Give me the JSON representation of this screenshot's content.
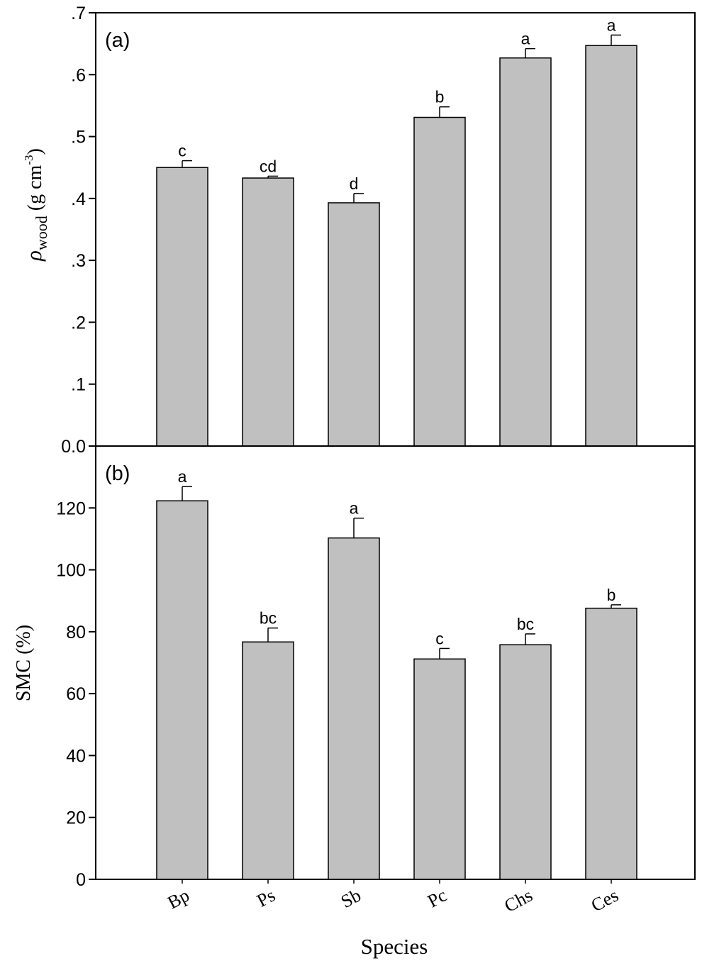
{
  "chart_data": [
    {
      "type": "bar",
      "panel": "(a)",
      "categories": [
        "Bp",
        "Ps",
        "Sb",
        "Pc",
        "Chs",
        "Ces"
      ],
      "series": [
        {
          "values": [
            0.45,
            0.433,
            0.393,
            0.531,
            0.627,
            0.647
          ],
          "errors": [
            0.011,
            0.003,
            0.015,
            0.017,
            0.015,
            0.017
          ],
          "labels": [
            "c",
            "cd",
            "d",
            "b",
            "a",
            "a"
          ]
        }
      ],
      "ylabel_symbol": "ρ",
      "ylabel_subscript": "wood",
      "ylabel_unit": " (g cm",
      "ylabel_exponent": "-3",
      "ylabel_close": ")",
      "ylim": [
        0,
        0.7
      ],
      "yticks": [
        0,
        0.1,
        0.2,
        0.3,
        0.4,
        0.5,
        0.6,
        0.7
      ],
      "ytick_labels": [
        "0.0",
        ".1",
        ".2",
        ".3",
        ".4",
        ".5",
        ".6",
        ".7"
      ],
      "bar_color": "#c0c0c0",
      "grid": false
    },
    {
      "type": "bar",
      "panel": "(b)",
      "categories": [
        "Bp",
        "Ps",
        "Sb",
        "Pc",
        "Chs",
        "Ces"
      ],
      "series": [
        {
          "values": [
            122.3,
            76.7,
            110.3,
            71.2,
            75.8,
            87.6
          ],
          "errors": [
            4.6,
            4.5,
            6.4,
            3.4,
            3.5,
            1.1
          ],
          "labels": [
            "a",
            "bc",
            "a",
            "c",
            "bc",
            "b"
          ]
        }
      ],
      "ylabel": "SMC (%)",
      "xlabel": "Species",
      "ylim": [
        0,
        140
      ],
      "yticks": [
        0,
        20,
        40,
        60,
        80,
        100,
        120
      ],
      "ytick_labels": [
        "0",
        "20",
        "40",
        "60",
        "80",
        "100",
        "120"
      ],
      "bar_color": "#c0c0c0",
      "grid": false
    }
  ]
}
